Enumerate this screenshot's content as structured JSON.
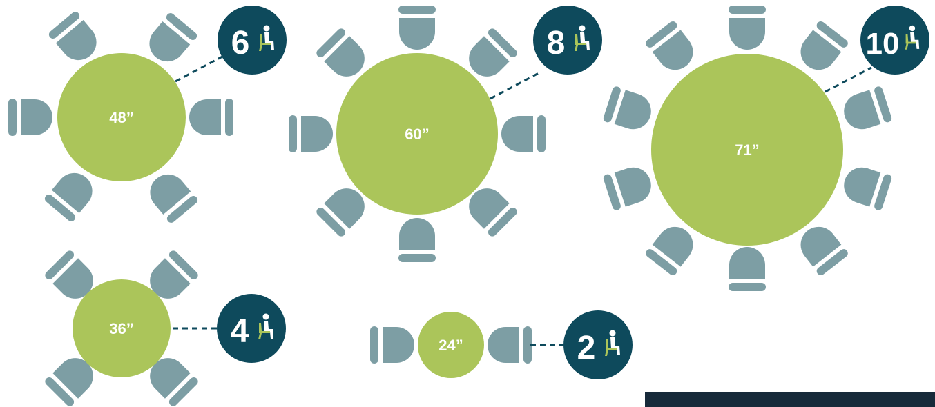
{
  "colors": {
    "table": "#abc55a",
    "chair": "#7d9ea4",
    "badge": "#0e4a5c",
    "dashed": "#0e4a5c",
    "dark_bar": "#172a3a"
  },
  "tables": [
    {
      "id": "t48",
      "size_label": "48”",
      "seats": 6,
      "seat_count_label": "6"
    },
    {
      "id": "t60",
      "size_label": "60”",
      "seats": 8,
      "seat_count_label": "8"
    },
    {
      "id": "t71",
      "size_label": "71”",
      "seats": 10,
      "seat_count_label": "10"
    },
    {
      "id": "t36",
      "size_label": "36”",
      "seats": 4,
      "seat_count_label": "4"
    },
    {
      "id": "t24",
      "size_label": "24”",
      "seats": 2,
      "seat_count_label": "2"
    }
  ],
  "icons": {
    "seated_person": "seated-person-icon"
  }
}
